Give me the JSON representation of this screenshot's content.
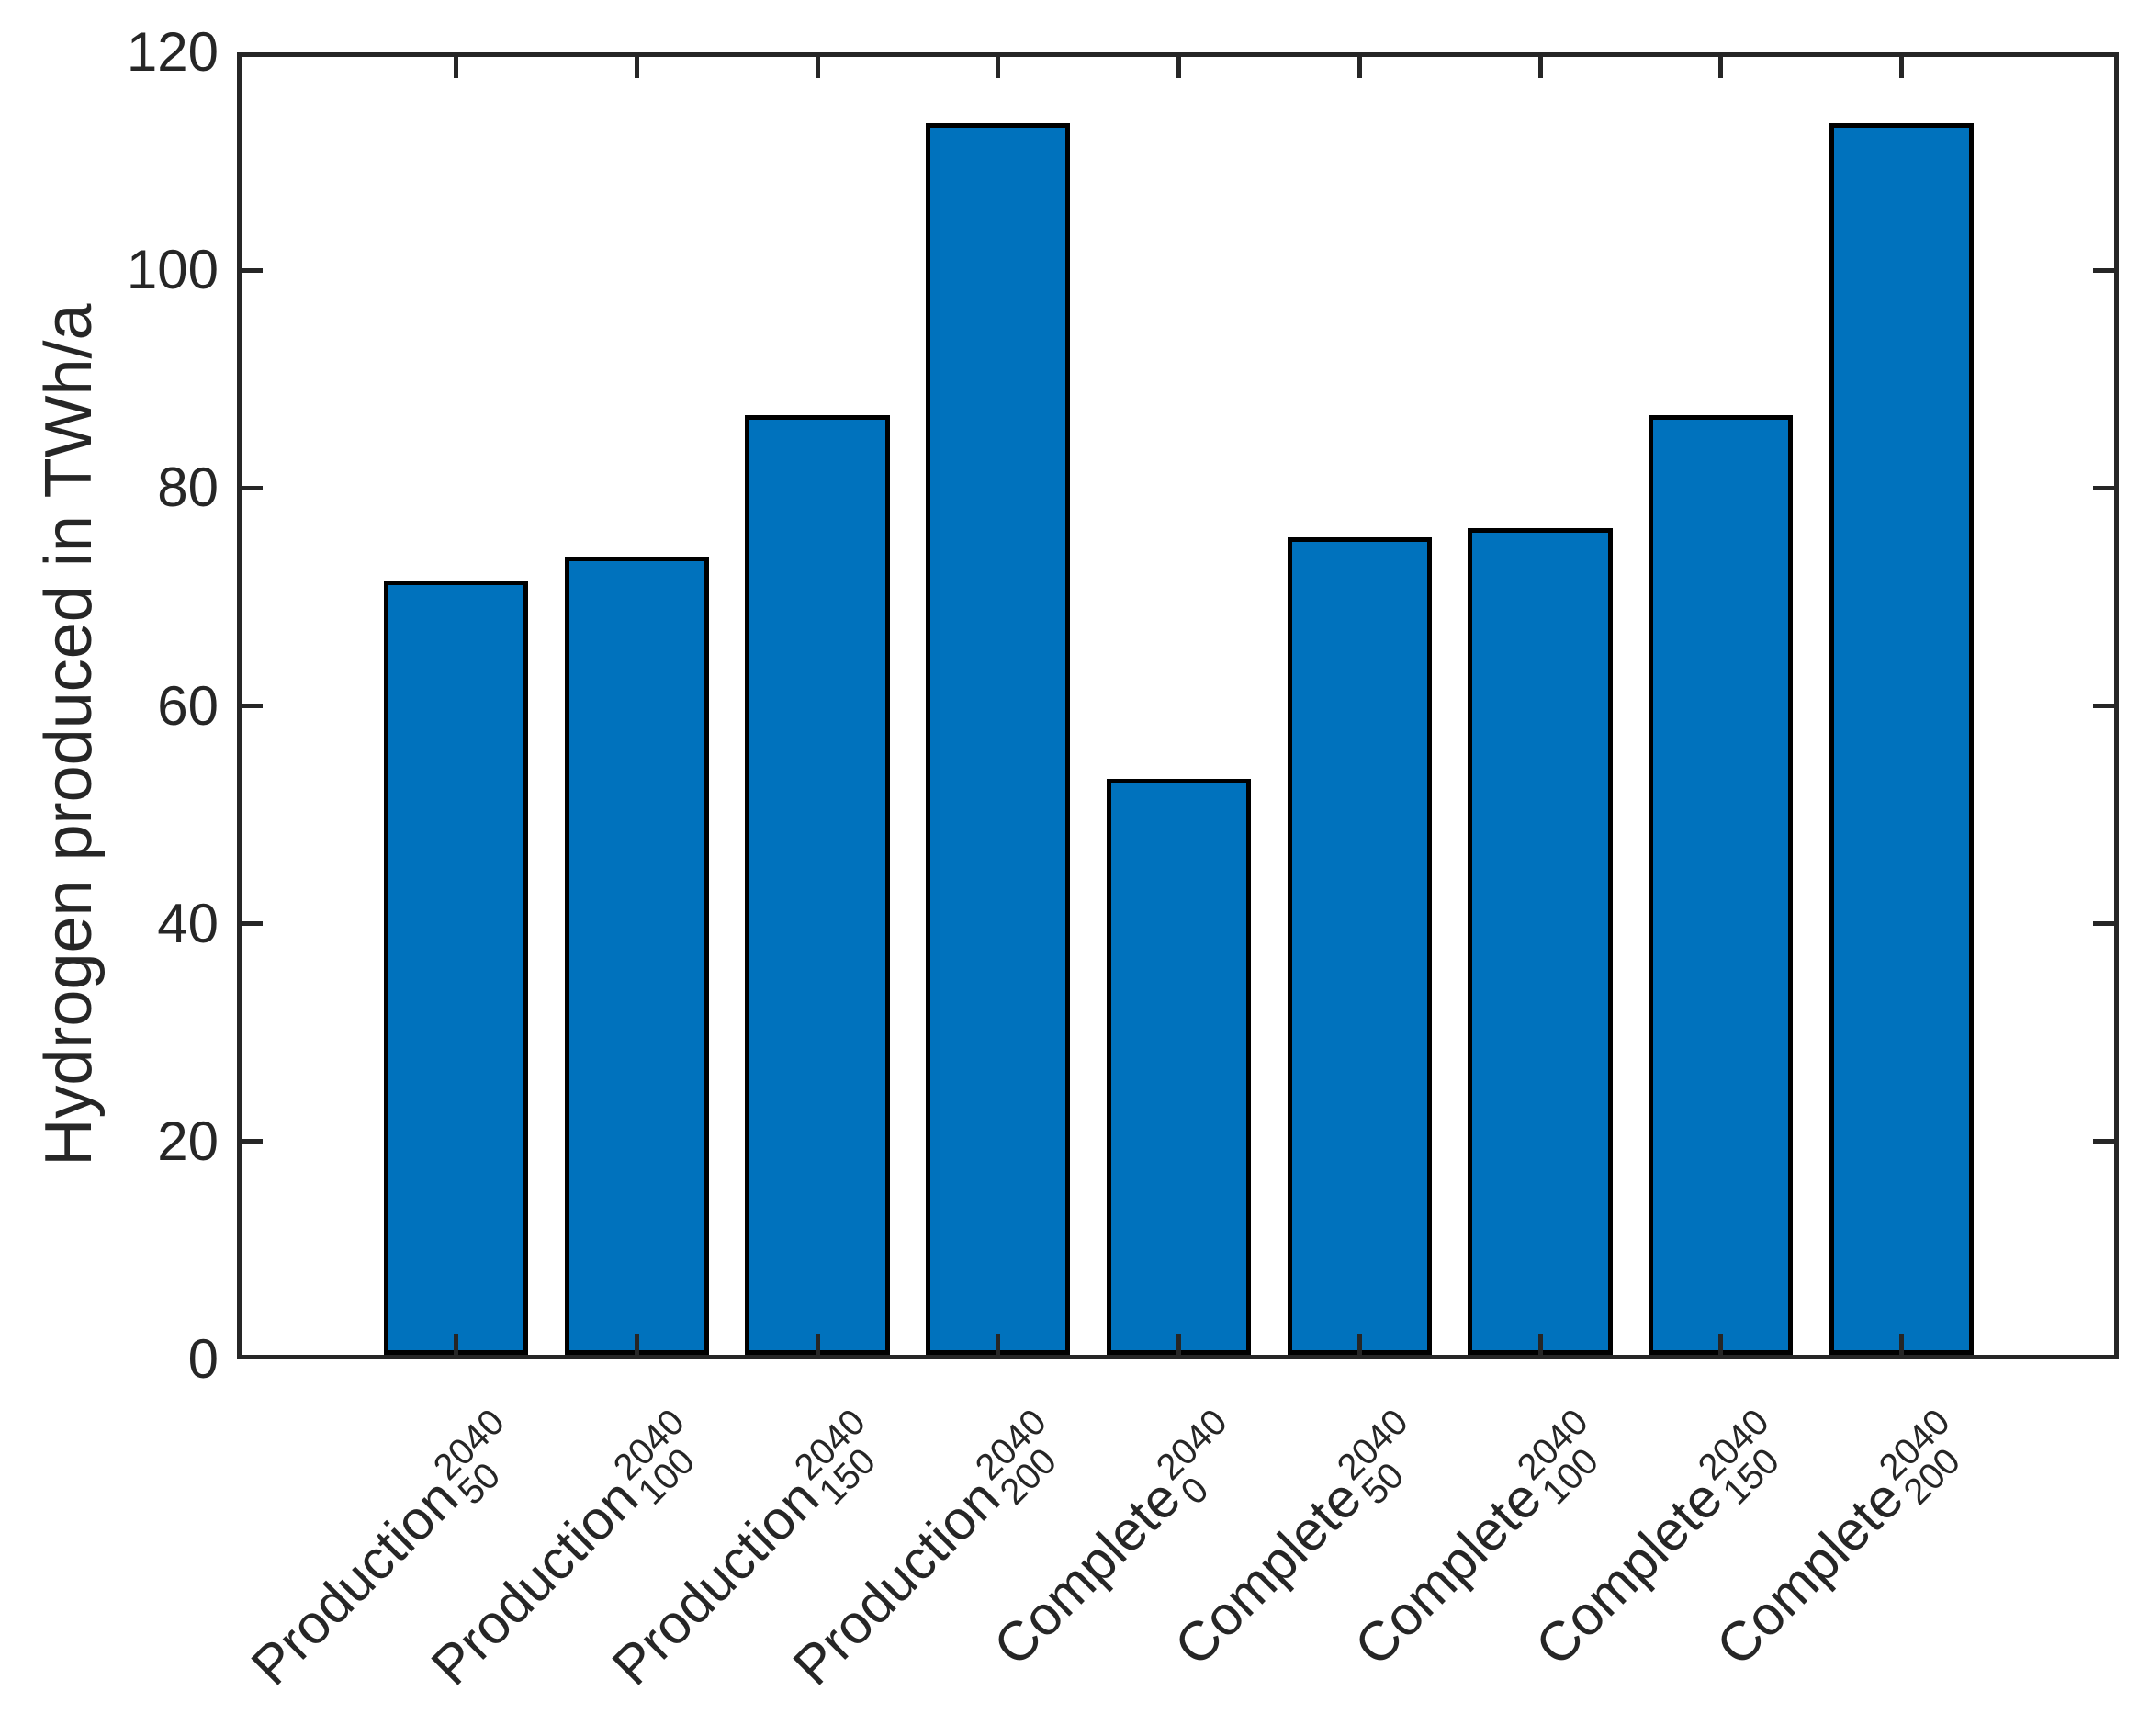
{
  "chart_data": {
    "type": "bar",
    "title": "",
    "ylabel": "Hydrogen produced in TWh/a",
    "xlabel": "",
    "ylim": [
      0,
      120
    ],
    "yticks": [
      0,
      20,
      40,
      60,
      80,
      100,
      120
    ],
    "grid": false,
    "legend": null,
    "box": true,
    "bar_color": "#0072BD",
    "bar_edge_color": "#000000",
    "axis_color": "#262626",
    "categories": [
      {
        "name": "Production",
        "sup": "2040",
        "sub": "50"
      },
      {
        "name": "Production",
        "sup": "2040",
        "sub": "100"
      },
      {
        "name": "Production",
        "sup": "2040",
        "sub": "150"
      },
      {
        "name": "Production",
        "sup": "2040",
        "sub": "200"
      },
      {
        "name": "Complete",
        "sup": "2040",
        "sub": "0"
      },
      {
        "name": "Complete",
        "sup": "2040",
        "sub": "50"
      },
      {
        "name": "Complete",
        "sup": "2040",
        "sub": "100"
      },
      {
        "name": "Complete",
        "sup": "2040",
        "sub": "150"
      },
      {
        "name": "Complete",
        "sup": "2040",
        "sub": "200"
      }
    ],
    "values": [
      71.5,
      73.7,
      86.7,
      113.5,
      53.3,
      75.5,
      76.3,
      86.7,
      113.5
    ]
  }
}
